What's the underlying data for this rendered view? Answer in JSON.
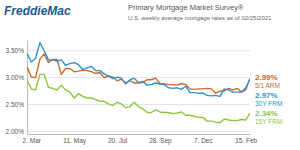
{
  "chart_data": {
    "type": "line",
    "logo": "FreddieMac",
    "title": "Primary Mortgage Market Survey®",
    "subtitle": "U.S. weekly average mortgage rates as of 02/25/2021",
    "categories": [
      null,
      "2. Mar",
      null,
      null,
      null,
      null,
      null,
      null,
      null,
      null,
      null,
      "11. May",
      null,
      null,
      null,
      null,
      null,
      null,
      null,
      null,
      null,
      "20. Jul",
      null,
      null,
      null,
      null,
      null,
      null,
      null,
      null,
      null,
      "28. Sep",
      null,
      null,
      null,
      null,
      null,
      null,
      null,
      null,
      null,
      "7. Dec",
      null,
      null,
      null,
      null,
      null,
      null,
      null,
      null,
      null,
      "15. Feb",
      null
    ],
    "ylim": [
      1.95,
      3.7
    ],
    "yticks": [
      {
        "value": 2,
        "label": "2.00%"
      },
      {
        "value": 2.5,
        "label": "2.50%"
      },
      {
        "value": 3,
        "label": "3.00%"
      },
      {
        "value": 3.5,
        "label": "3.50%"
      }
    ],
    "grid": true,
    "series": [
      {
        "name": "5/1 ARM",
        "color": "#c96a2a",
        "values": [
          3.2,
          3.01,
          3.0,
          3.34,
          3.44,
          3.28,
          3.34,
          3.34,
          3.06,
          3.17,
          3.17,
          3.11,
          3.12,
          3.14,
          3.13,
          3.11,
          3.08,
          3.09,
          3.0,
          3.03,
          3.01,
          2.94,
          2.97,
          2.9,
          2.94,
          2.9,
          2.9,
          2.91,
          2.96,
          2.96,
          2.99,
          2.89,
          2.88,
          2.87,
          2.87,
          2.86,
          2.89,
          2.87,
          2.79,
          2.78,
          2.79,
          2.79,
          2.8,
          2.79,
          2.71,
          2.75,
          2.75,
          2.8,
          2.77,
          2.8,
          2.73,
          2.77,
          2.99
        ],
        "value_labels": [
          null,
          null,
          null,
          null,
          null,
          null,
          null,
          null,
          null,
          null,
          null,
          null,
          null,
          null,
          null,
          null,
          null,
          null,
          null,
          null,
          null,
          null,
          null,
          null,
          null,
          null,
          null,
          null,
          null,
          null,
          null,
          null,
          null,
          null,
          null,
          null,
          null,
          null,
          null,
          null,
          null,
          null,
          null,
          null,
          null,
          null,
          null,
          null,
          null,
          null,
          null,
          null,
          "2.99%"
        ]
      },
      {
        "name": "30Y FRM",
        "color": "#2e93d1",
        "values": [
          3.45,
          3.29,
          3.36,
          3.65,
          3.5,
          3.33,
          3.33,
          3.31,
          3.33,
          3.23,
          3.26,
          3.28,
          3.24,
          3.15,
          3.18,
          3.21,
          3.13,
          3.13,
          3.07,
          3.03,
          2.98,
          3.01,
          2.99,
          2.88,
          2.96,
          2.99,
          2.91,
          2.93,
          2.86,
          2.87,
          2.9,
          2.88,
          2.87,
          2.81,
          2.8,
          2.81,
          2.78,
          2.84,
          2.72,
          2.72,
          2.71,
          2.71,
          2.67,
          2.66,
          2.67,
          2.65,
          2.79,
          2.77,
          2.73,
          2.73,
          2.73,
          2.81,
          2.97
        ],
        "value_labels": [
          null,
          null,
          null,
          null,
          null,
          null,
          null,
          null,
          null,
          null,
          null,
          null,
          null,
          null,
          null,
          null,
          null,
          null,
          null,
          null,
          null,
          null,
          null,
          null,
          null,
          null,
          null,
          null,
          null,
          null,
          null,
          null,
          null,
          null,
          null,
          null,
          null,
          null,
          null,
          null,
          null,
          null,
          null,
          null,
          null,
          null,
          null,
          null,
          null,
          null,
          null,
          null,
          "2.97%"
        ]
      },
      {
        "name": "15Y FRM",
        "color": "#8dc63f",
        "values": [
          2.95,
          2.79,
          2.77,
          3.06,
          3.06,
          2.82,
          2.8,
          2.77,
          2.86,
          2.77,
          2.73,
          2.62,
          2.7,
          2.65,
          2.62,
          2.62,
          2.59,
          2.56,
          2.56,
          2.51,
          2.48,
          2.54,
          2.51,
          2.44,
          2.46,
          2.54,
          2.46,
          2.42,
          2.35,
          2.35,
          2.4,
          2.36,
          2.35,
          2.35,
          2.33,
          2.34,
          2.36,
          2.3,
          2.3,
          2.28,
          2.26,
          2.26,
          2.19,
          2.19,
          2.17,
          2.16,
          2.23,
          2.21,
          2.2,
          2.2,
          2.22,
          2.21,
          2.34
        ],
        "value_labels": [
          null,
          null,
          null,
          null,
          null,
          null,
          null,
          null,
          null,
          null,
          null,
          null,
          null,
          null,
          null,
          null,
          null,
          null,
          null,
          null,
          null,
          null,
          null,
          null,
          null,
          null,
          null,
          null,
          null,
          null,
          null,
          null,
          null,
          null,
          null,
          null,
          null,
          null,
          null,
          null,
          null,
          null,
          null,
          null,
          null,
          null,
          null,
          null,
          null,
          null,
          null,
          null,
          "2.34%"
        ]
      }
    ]
  }
}
